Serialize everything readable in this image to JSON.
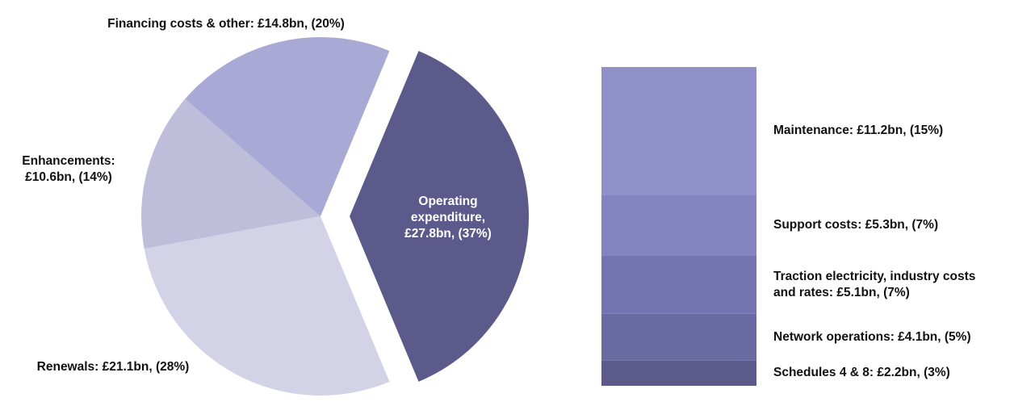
{
  "chart_data": [
    {
      "type": "pie",
      "values": [
        27.8,
        21.1,
        10.6,
        14.8
      ],
      "value_labels": [
        "Operating expenditure, £27.8bn, (37%)",
        "Renewals: £21.1bn, (28%)",
        "Enhancements: £10.6bn, (14%)",
        "Financing costs & other: £14.8bn, (20%)"
      ],
      "colors": [
        "#5b5a8a",
        "#d3d3e8",
        "#bebedb",
        "#a9a9d6"
      ]
    },
    {
      "type": "stacked-bar",
      "values": [
        11.2,
        5.3,
        5.1,
        4.1,
        2.2
      ],
      "value_labels": [
        "Maintenance: £11.2bn, (15%)",
        "Support costs: £5.3bn, (7%)",
        "Traction electricity, industry costs and rates: £5.1bn, (7%)",
        "Network operations: £4.1bn, (5%)",
        "Schedules 4 & 8: £2.2bn, (3%)"
      ],
      "colors": [
        "#9090c8",
        "#8383bf",
        "#7474b0",
        "#6a6aa3",
        "#5b5a8a"
      ]
    }
  ]
}
